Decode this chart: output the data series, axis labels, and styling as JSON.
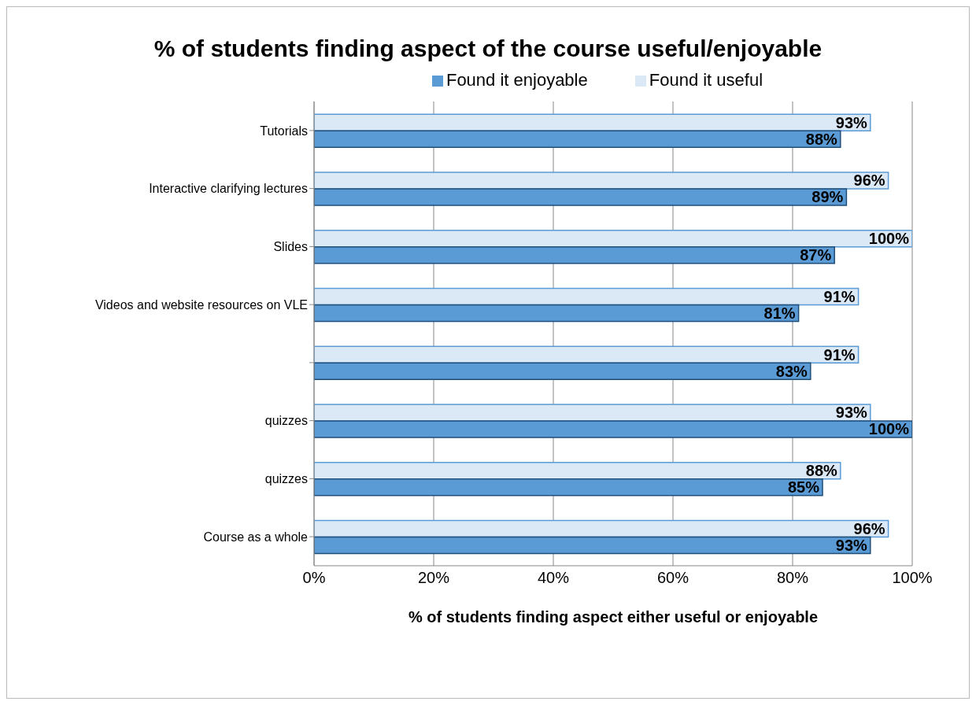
{
  "chart_data": {
    "type": "bar",
    "orientation": "horizontal",
    "title": "% of students finding aspect of the course useful/enjoyable",
    "xlabel": "% of students finding aspect either useful or enjoyable",
    "categories": [
      "Tutorials",
      "Interactive clarifying lectures",
      "Slides",
      "Videos and website resources on VLE",
      null,
      "quizzes",
      "quizzes",
      "Course as a whole"
    ],
    "series": [
      {
        "name": "Found it useful",
        "color": "#dbe8f6",
        "values": [
          93,
          96,
          100,
          91,
          91,
          93,
          88,
          96
        ],
        "value_labels": [
          "93%",
          "96%",
          "100%",
          "91%",
          "91%",
          "93%",
          "88%",
          "96%"
        ]
      },
      {
        "name": "Found it enjoyable",
        "color": "#5b9bd5",
        "values": [
          88,
          89,
          87,
          81,
          83,
          100,
          85,
          93
        ],
        "value_labels": [
          "88%",
          "89%",
          "87%",
          "81%",
          "83%",
          "100%",
          "85%",
          "93%"
        ]
      }
    ],
    "xlim": [
      0,
      100
    ],
    "xticks": [
      {
        "value": 0,
        "label": "0%"
      },
      {
        "value": 20,
        "label": "20%"
      },
      {
        "value": 40,
        "label": "40%"
      },
      {
        "value": 60,
        "label": "60%"
      },
      {
        "value": 80,
        "label": "80%"
      },
      {
        "value": 100,
        "label": "100%"
      }
    ],
    "grid": "x",
    "legend": "top"
  }
}
